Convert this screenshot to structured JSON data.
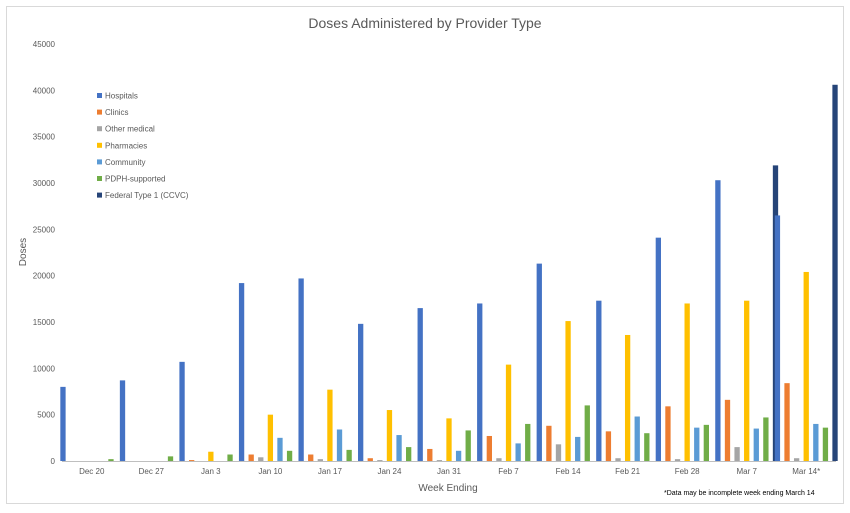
{
  "chart_data": {
    "type": "bar",
    "title": "Doses Administered by Provider Type",
    "xlabel": "Week Ending",
    "ylabel": "Doses",
    "ylim": [
      0,
      45000
    ],
    "yticks": [
      0,
      5000,
      10000,
      15000,
      20000,
      25000,
      30000,
      35000,
      40000,
      45000
    ],
    "grid": false,
    "legend_position": "top-left",
    "categories": [
      "Dec 20",
      "Dec 27",
      "Jan 3",
      "Jan 10",
      "Jan 17",
      "Jan 24",
      "Jan 31",
      "Feb 7",
      "Feb 14",
      "Feb 21",
      "Feb 28",
      "Mar 7",
      "Mar 14*"
    ],
    "series": [
      {
        "name": "Hospitals",
        "color": "#4472c4",
        "values": [
          8000,
          8700,
          10700,
          19200,
          19700,
          14800,
          16500,
          17000,
          21300,
          17300,
          24100,
          30300,
          26500
        ]
      },
      {
        "name": "Clinics",
        "color": "#ed7d31",
        "values": [
          0,
          0,
          100,
          700,
          700,
          300,
          1300,
          2700,
          3800,
          3200,
          5900,
          6600,
          8400
        ]
      },
      {
        "name": "Other medical",
        "color": "#a5a5a5",
        "values": [
          0,
          0,
          0,
          400,
          200,
          100,
          100,
          300,
          1800,
          300,
          200,
          1500,
          300
        ]
      },
      {
        "name": "Pharmacies",
        "color": "#ffc000",
        "values": [
          0,
          0,
          1000,
          5000,
          7700,
          5500,
          4600,
          10400,
          15100,
          13600,
          17000,
          17300,
          20400
        ]
      },
      {
        "name": "Community",
        "color": "#5b9bd5",
        "values": [
          0,
          0,
          0,
          2500,
          3400,
          2800,
          1100,
          1900,
          2600,
          4800,
          3600,
          3500,
          4000
        ]
      },
      {
        "name": "PDPH-supported",
        "color": "#70ad47",
        "values": [
          200,
          500,
          700,
          1100,
          1200,
          1500,
          3300,
          4000,
          6000,
          3000,
          3900,
          4700,
          3600
        ]
      },
      {
        "name": "Federal Type 1 (CCVC)",
        "color": "#264478",
        "values": [
          0,
          0,
          0,
          0,
          0,
          0,
          0,
          0,
          0,
          0,
          0,
          31900,
          40600
        ]
      }
    ],
    "footnote": "*Data may be incomplete week ending March 14"
  }
}
